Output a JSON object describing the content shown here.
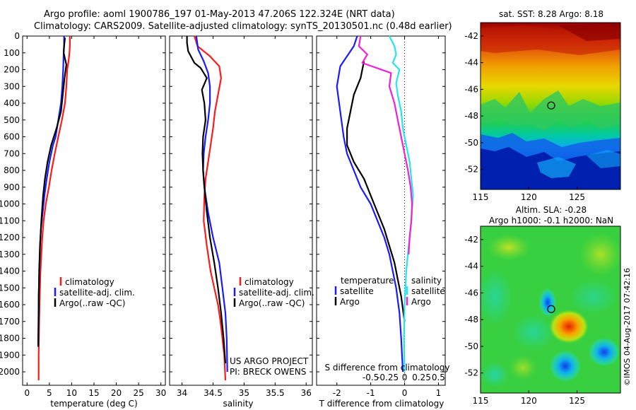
{
  "header": {
    "title_line1": "Argo profile: aoml 1900786_197 01-May-2013 47.206S 122.324E (NRT data)",
    "title_line2": "Climatology: CARS2009. Satellite-adjusted climatology: synTS_20130501.nc (0.48d earlier)"
  },
  "side_stamp": "©IMOS 04-Aug-2017 07:42:16",
  "colors": {
    "climatology": "#ff1a1a",
    "satellite_adj": "#1a1aff",
    "argo": "#000000",
    "satellite_s": "#22e5f0",
    "argo_s": "#f020d8"
  },
  "chart_data": [
    {
      "id": "temperature",
      "type": "line",
      "xlabel": "temperature (deg C)",
      "ylabel": "",
      "xlim": [
        -1,
        31
      ],
      "ylim": [
        2080,
        0
      ],
      "xticks": [
        0,
        5,
        10,
        15,
        20,
        25,
        30
      ],
      "xtick_labels": [
        "0",
        "5",
        "10",
        "15",
        "20",
        "25",
        "30"
      ],
      "yticks": [
        0,
        100,
        200,
        300,
        400,
        500,
        600,
        700,
        800,
        900,
        1000,
        1100,
        1200,
        1300,
        1400,
        1500,
        1600,
        1700,
        1800,
        1900,
        2000
      ],
      "legend": [
        "climatology",
        "satellite-adj. clim.",
        "Argo(..raw -QC)"
      ],
      "legend_position": "lower-center",
      "series": [
        {
          "name": "climatology",
          "color_key": "climatology",
          "x": [
            9.6,
            9.6,
            9.5,
            9.3,
            9.0,
            8.8,
            8.5,
            7.8,
            7.0,
            6.2,
            5.5,
            4.9,
            4.2,
            3.7,
            3.4,
            3.2,
            3.0,
            2.9,
            2.8,
            2.7,
            2.6,
            2.6
          ],
          "y": [
            0,
            50,
            100,
            150,
            200,
            300,
            400,
            500,
            600,
            700,
            800,
            900,
            1000,
            1100,
            1200,
            1300,
            1400,
            1500,
            1600,
            1700,
            1900,
            2050
          ]
        },
        {
          "name": "satellite-adj. clim.",
          "color_key": "satellite_adj",
          "x": [
            8.3,
            8.3,
            8.2,
            8.1,
            7.9,
            7.6,
            7.0,
            6.4,
            5.8,
            5.0,
            4.4,
            3.9,
            3.5,
            3.1,
            2.9,
            2.8,
            2.7,
            2.6,
            2.6,
            2.5
          ],
          "y": [
            0,
            50,
            100,
            200,
            300,
            400,
            500,
            600,
            650,
            750,
            850,
            950,
            1050,
            1150,
            1250,
            1350,
            1450,
            1550,
            1700,
            1850
          ]
        },
        {
          "name": "Argo(..raw -QC)",
          "color_key": "argo",
          "x": [
            8.5,
            8.3,
            8.2,
            8.8,
            8.4,
            8.0,
            7.6,
            6.6,
            5.4,
            4.6,
            4.0,
            3.6,
            3.2,
            2.9,
            2.7,
            2.6,
            2.5
          ],
          "y": [
            10,
            60,
            100,
            170,
            250,
            350,
            450,
            550,
            650,
            750,
            850,
            950,
            1100,
            1250,
            1400,
            1600,
            1850
          ]
        }
      ]
    },
    {
      "id": "salinity",
      "type": "line",
      "xlabel": "salinity",
      "ylabel": "",
      "xlim": [
        33.8,
        36.1
      ],
      "ylim": [
        2080,
        0
      ],
      "xticks": [
        34,
        34.5,
        35,
        35.5,
        36
      ],
      "xtick_labels": [
        "34",
        "34.5",
        "35",
        "35.5",
        "36"
      ],
      "legend": [
        "climatology",
        "satellite-adj. clim.",
        "Argo(..raw -QC)"
      ],
      "legend_position": "lower-right",
      "annotation_line1": "US ARGO PROJECT",
      "annotation_line2": "PI: BRECK OWENS",
      "series": [
        {
          "name": "climatology",
          "color_key": "climatology",
          "x": [
            34.2,
            34.25,
            34.45,
            34.6,
            34.63,
            34.58,
            34.53,
            34.5,
            34.46,
            34.42,
            34.38,
            34.36,
            34.35,
            34.4,
            34.46,
            34.52,
            34.58,
            34.62,
            34.65,
            34.68,
            34.7
          ],
          "y": [
            0,
            60,
            120,
            180,
            250,
            350,
            450,
            550,
            650,
            750,
            850,
            950,
            1100,
            1250,
            1400,
            1500,
            1600,
            1700,
            1800,
            1900,
            2050
          ]
        },
        {
          "name": "satellite-adj. clim.",
          "color_key": "satellite_adj",
          "x": [
            34.23,
            34.26,
            34.35,
            34.42,
            34.45,
            34.45,
            34.42,
            34.38,
            34.35,
            34.34,
            34.36,
            34.42,
            34.5,
            34.6,
            34.65,
            34.7,
            34.72,
            34.73
          ],
          "y": [
            0,
            80,
            150,
            220,
            300,
            400,
            500,
            600,
            700,
            800,
            900,
            1050,
            1200,
            1350,
            1500,
            1650,
            1800,
            2000
          ]
        },
        {
          "name": "Argo(..raw -QC)",
          "color_key": "argo",
          "x": [
            34.08,
            34.08,
            34.1,
            34.2,
            34.3,
            34.4,
            34.32,
            34.36,
            34.38,
            34.34,
            34.33,
            34.34,
            34.36,
            34.4,
            34.45,
            34.52,
            34.58,
            34.63,
            34.67,
            34.7
          ],
          "y": [
            0,
            40,
            90,
            160,
            190,
            250,
            320,
            400,
            500,
            600,
            700,
            800,
            900,
            1050,
            1200,
            1350,
            1500,
            1650,
            1800,
            1950
          ]
        }
      ]
    },
    {
      "id": "difference",
      "type": "line",
      "xlabel": "T difference from climatology",
      "xlabel_top": "S difference from climatology",
      "ylabel": "",
      "xlim": [
        -2.6,
        1.2
      ],
      "ylim": [
        2080,
        0
      ],
      "xticks": [
        -2,
        -1,
        0,
        1
      ],
      "xtick_labels": [
        "-2",
        "-1",
        "0",
        "1"
      ],
      "s_xticks": [
        -0.5,
        -0.25,
        0,
        0.25,
        0.5
      ],
      "s_xtick_labels": [
        "-0.5",
        "-0.25",
        "0",
        "0.25",
        "0.5"
      ],
      "legend_t_title": "temperature",
      "legend_s_title": "salinity",
      "legend_t": [
        "satellite",
        "Argo"
      ],
      "legend_s": [
        "satellite",
        "Argo"
      ],
      "series": [
        {
          "name": "satellite",
          "color_key": "satellite_adj",
          "x": [
            -1.4,
            -1.5,
            -1.7,
            -1.9,
            -2.0,
            -1.9,
            -1.8,
            -1.7,
            -1.5,
            -1.3,
            -1.0,
            -0.8,
            -0.6,
            -0.45,
            -0.35,
            -0.25,
            -0.15,
            -0.1,
            -0.05
          ],
          "y": [
            0,
            60,
            120,
            180,
            300,
            450,
            600,
            700,
            800,
            900,
            1000,
            1100,
            1200,
            1300,
            1400,
            1500,
            1650,
            1800,
            2000
          ]
        },
        {
          "name": "Argo",
          "color_key": "argo",
          "x": [
            -1.2,
            -1.3,
            -1.5,
            -1.6,
            -1.7,
            -1.7,
            -1.5,
            -1.2,
            -1.0,
            -0.8,
            -0.6,
            -0.45,
            -0.3,
            -0.2,
            -0.1,
            0.0
          ],
          "y": [
            150,
            250,
            350,
            450,
            550,
            650,
            750,
            850,
            950,
            1050,
            1150,
            1250,
            1350,
            1450,
            1550,
            1700
          ]
        },
        {
          "name": "satellite",
          "color_key": "satellite_s",
          "x": [
            -0.45,
            -0.3,
            -0.25,
            -0.35,
            -0.15,
            -0.25,
            -0.2,
            -0.1,
            -0.05,
            0.05,
            0.15,
            0.2,
            0.25,
            0.2,
            0.12,
            0.05,
            0.0,
            -0.02,
            0.0
          ],
          "y": [
            0,
            60,
            110,
            160,
            200,
            280,
            350,
            450,
            550,
            650,
            750,
            850,
            950,
            1100,
            1250,
            1400,
            1600,
            1800,
            2000
          ]
        },
        {
          "name": "Argo",
          "color_key": "argo_s",
          "x": [
            -1.3,
            -1.35,
            -1.1,
            -1.25,
            -0.4,
            -0.45,
            -0.3,
            -0.2,
            -0.1,
            0.0,
            0.1,
            0.18,
            0.22,
            0.2,
            0.15,
            0.12
          ],
          "y": [
            0,
            60,
            110,
            160,
            220,
            300,
            400,
            500,
            600,
            700,
            800,
            900,
            1000,
            1100,
            1200,
            1300
          ]
        }
      ]
    },
    {
      "id": "sst_map",
      "type": "heatmap",
      "title": "sat. SST: 8.28 Argo: 8.18",
      "xlim": [
        115,
        129.5
      ],
      "ylim": [
        -53.5,
        -41
      ],
      "xticks": [
        115,
        120,
        125
      ],
      "xtick_labels": [
        "115",
        "120",
        "125"
      ],
      "yticks": [
        -42,
        -44,
        -46,
        -48,
        -50,
        -52
      ],
      "ytick_labels": [
        "-42",
        "-44",
        "-46",
        "-48",
        "-50",
        "-52"
      ],
      "marker": {
        "lon": 122.324,
        "lat": -47.206
      }
    },
    {
      "id": "sla_map",
      "type": "heatmap",
      "title_line1": "Altim. SLA: -0.28",
      "title_line2": "Argo h1000: -0.1 h2000: NaN",
      "xlim": [
        115,
        129.5
      ],
      "ylim": [
        -53.5,
        -41
      ],
      "xticks": [
        115,
        120,
        125
      ],
      "xtick_labels": [
        "115",
        "120",
        "125"
      ],
      "yticks": [
        -42,
        -44,
        -46,
        -48,
        -50,
        -52
      ],
      "ytick_labels": [
        "-42",
        "-44",
        "-46",
        "-48",
        "-50",
        "-52"
      ],
      "marker": {
        "lon": 122.324,
        "lat": -47.206
      }
    }
  ]
}
